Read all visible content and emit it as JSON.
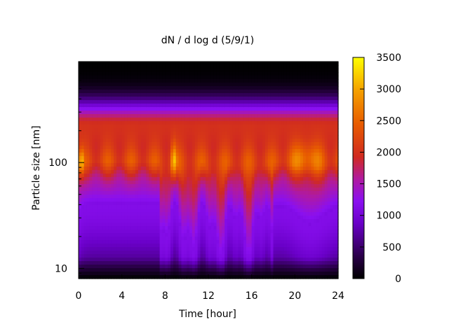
{
  "chart_data": {
    "type": "heatmap",
    "title": "dN / d log d (5/9/1)",
    "xlabel": "Time [hour]",
    "ylabel": "Particle size [nm]",
    "xlim": [
      0,
      24
    ],
    "ylim": [
      8,
      900
    ],
    "y_scale": "log",
    "x_ticks": [
      "0",
      "4",
      "8",
      "12",
      "16",
      "20",
      "24"
    ],
    "y_ticks": [
      "10",
      "100"
    ],
    "colorbar": {
      "min": 0,
      "max": 3500,
      "ticks": [
        "0",
        "500",
        "1000",
        "1500",
        "2000",
        "2500",
        "3000",
        "3500"
      ],
      "palette": [
        "#000000",
        "#3a0060",
        "#6a00c8",
        "#8c1cff",
        "#b4209a",
        "#d8300f",
        "#e85a00",
        "#f59000",
        "#fccc00",
        "#ffff00"
      ]
    },
    "grid": false,
    "description_values": {
      "peak_size_nm_approx": 100,
      "peak_concentration_approx": 3000
    }
  }
}
